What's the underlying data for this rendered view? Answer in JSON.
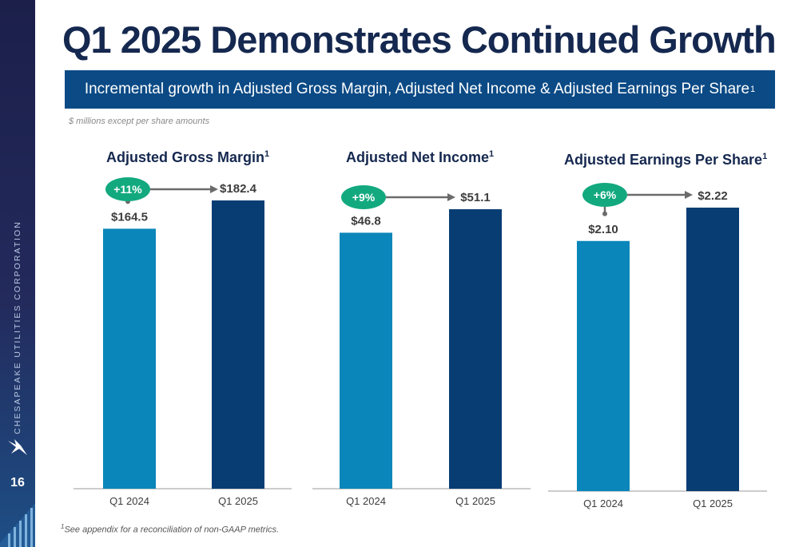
{
  "slide": {
    "title": "Q1 2025 Demonstrates Continued Growth",
    "banner_text": "Incremental growth in Adjusted Gross Margin, Adjusted Net Income & Adjusted Earnings Per Share",
    "banner_sup": "1",
    "units_note": "$ millions except per share amounts",
    "footnote_sup": "1",
    "footnote_text": "See appendix for a reconciliation of non-GAAP metrics.",
    "page_number": "16",
    "sidebar_text": "CHESAPEAKE UTILITIES CORPORATION"
  },
  "colors": {
    "bar_q1_2024": "#0a86ba",
    "bar_q1_2025": "#083d74",
    "badge": "#13a97f",
    "arrow": "#6b6b6b",
    "title": "#15284f",
    "banner": "#0b4a85"
  },
  "chart_data": [
    {
      "type": "bar",
      "title": "Adjusted Gross Margin",
      "title_sup": "1",
      "categories": [
        "Q1 2024",
        "Q1 2025"
      ],
      "values": [
        164.5,
        182.4
      ],
      "value_labels": [
        "$164.5",
        "$182.4"
      ],
      "change_label": "+11%"
    },
    {
      "type": "bar",
      "title": "Adjusted Net Income",
      "title_sup": "1",
      "categories": [
        "Q1 2024",
        "Q1 2025"
      ],
      "values": [
        46.8,
        51.1
      ],
      "value_labels": [
        "$46.8",
        "$51.1"
      ],
      "change_label": "+9%"
    },
    {
      "type": "bar",
      "title": "Adjusted Earnings Per Share",
      "title_sup": "1",
      "categories": [
        "Q1 2024",
        "Q1 2025"
      ],
      "values": [
        2.1,
        2.22
      ],
      "value_labels": [
        "$2.10",
        "$2.22"
      ],
      "change_label": "+6%"
    }
  ]
}
